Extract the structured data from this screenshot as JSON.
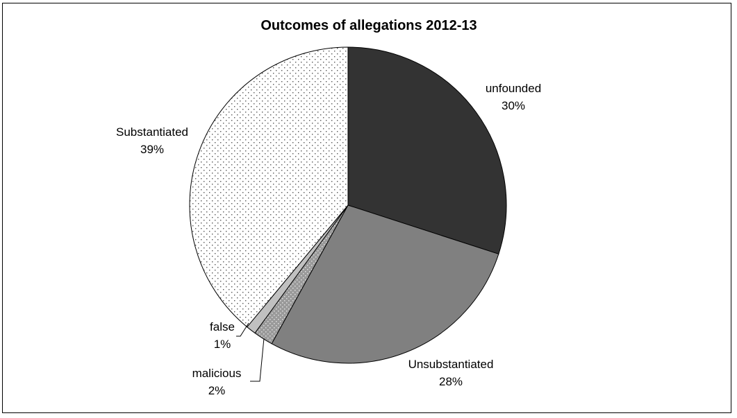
{
  "chart_data": {
    "type": "pie",
    "title": "Outcomes of allegations 2012-13",
    "slices": [
      {
        "label": "unfounded",
        "value": 30,
        "percent_label": "30%",
        "fill": "#333333",
        "pattern": "solid"
      },
      {
        "label": "Unsubstantiated",
        "value": 28,
        "percent_label": "28%",
        "fill": "#808080",
        "pattern": "solid"
      },
      {
        "label": "malicious",
        "value": 2,
        "percent_label": "2%",
        "fill": "#9a9a9a",
        "pattern": "dotted-dark"
      },
      {
        "label": "false",
        "value": 1,
        "percent_label": "1%",
        "fill": "#c0c0c0",
        "pattern": "solid"
      },
      {
        "label": "Substantiated",
        "value": 39,
        "percent_label": "39%",
        "fill": "#ffffff",
        "pattern": "dotted-light"
      }
    ],
    "start_angle": "12 o'clock",
    "direction": "clockwise",
    "legend": "none"
  }
}
